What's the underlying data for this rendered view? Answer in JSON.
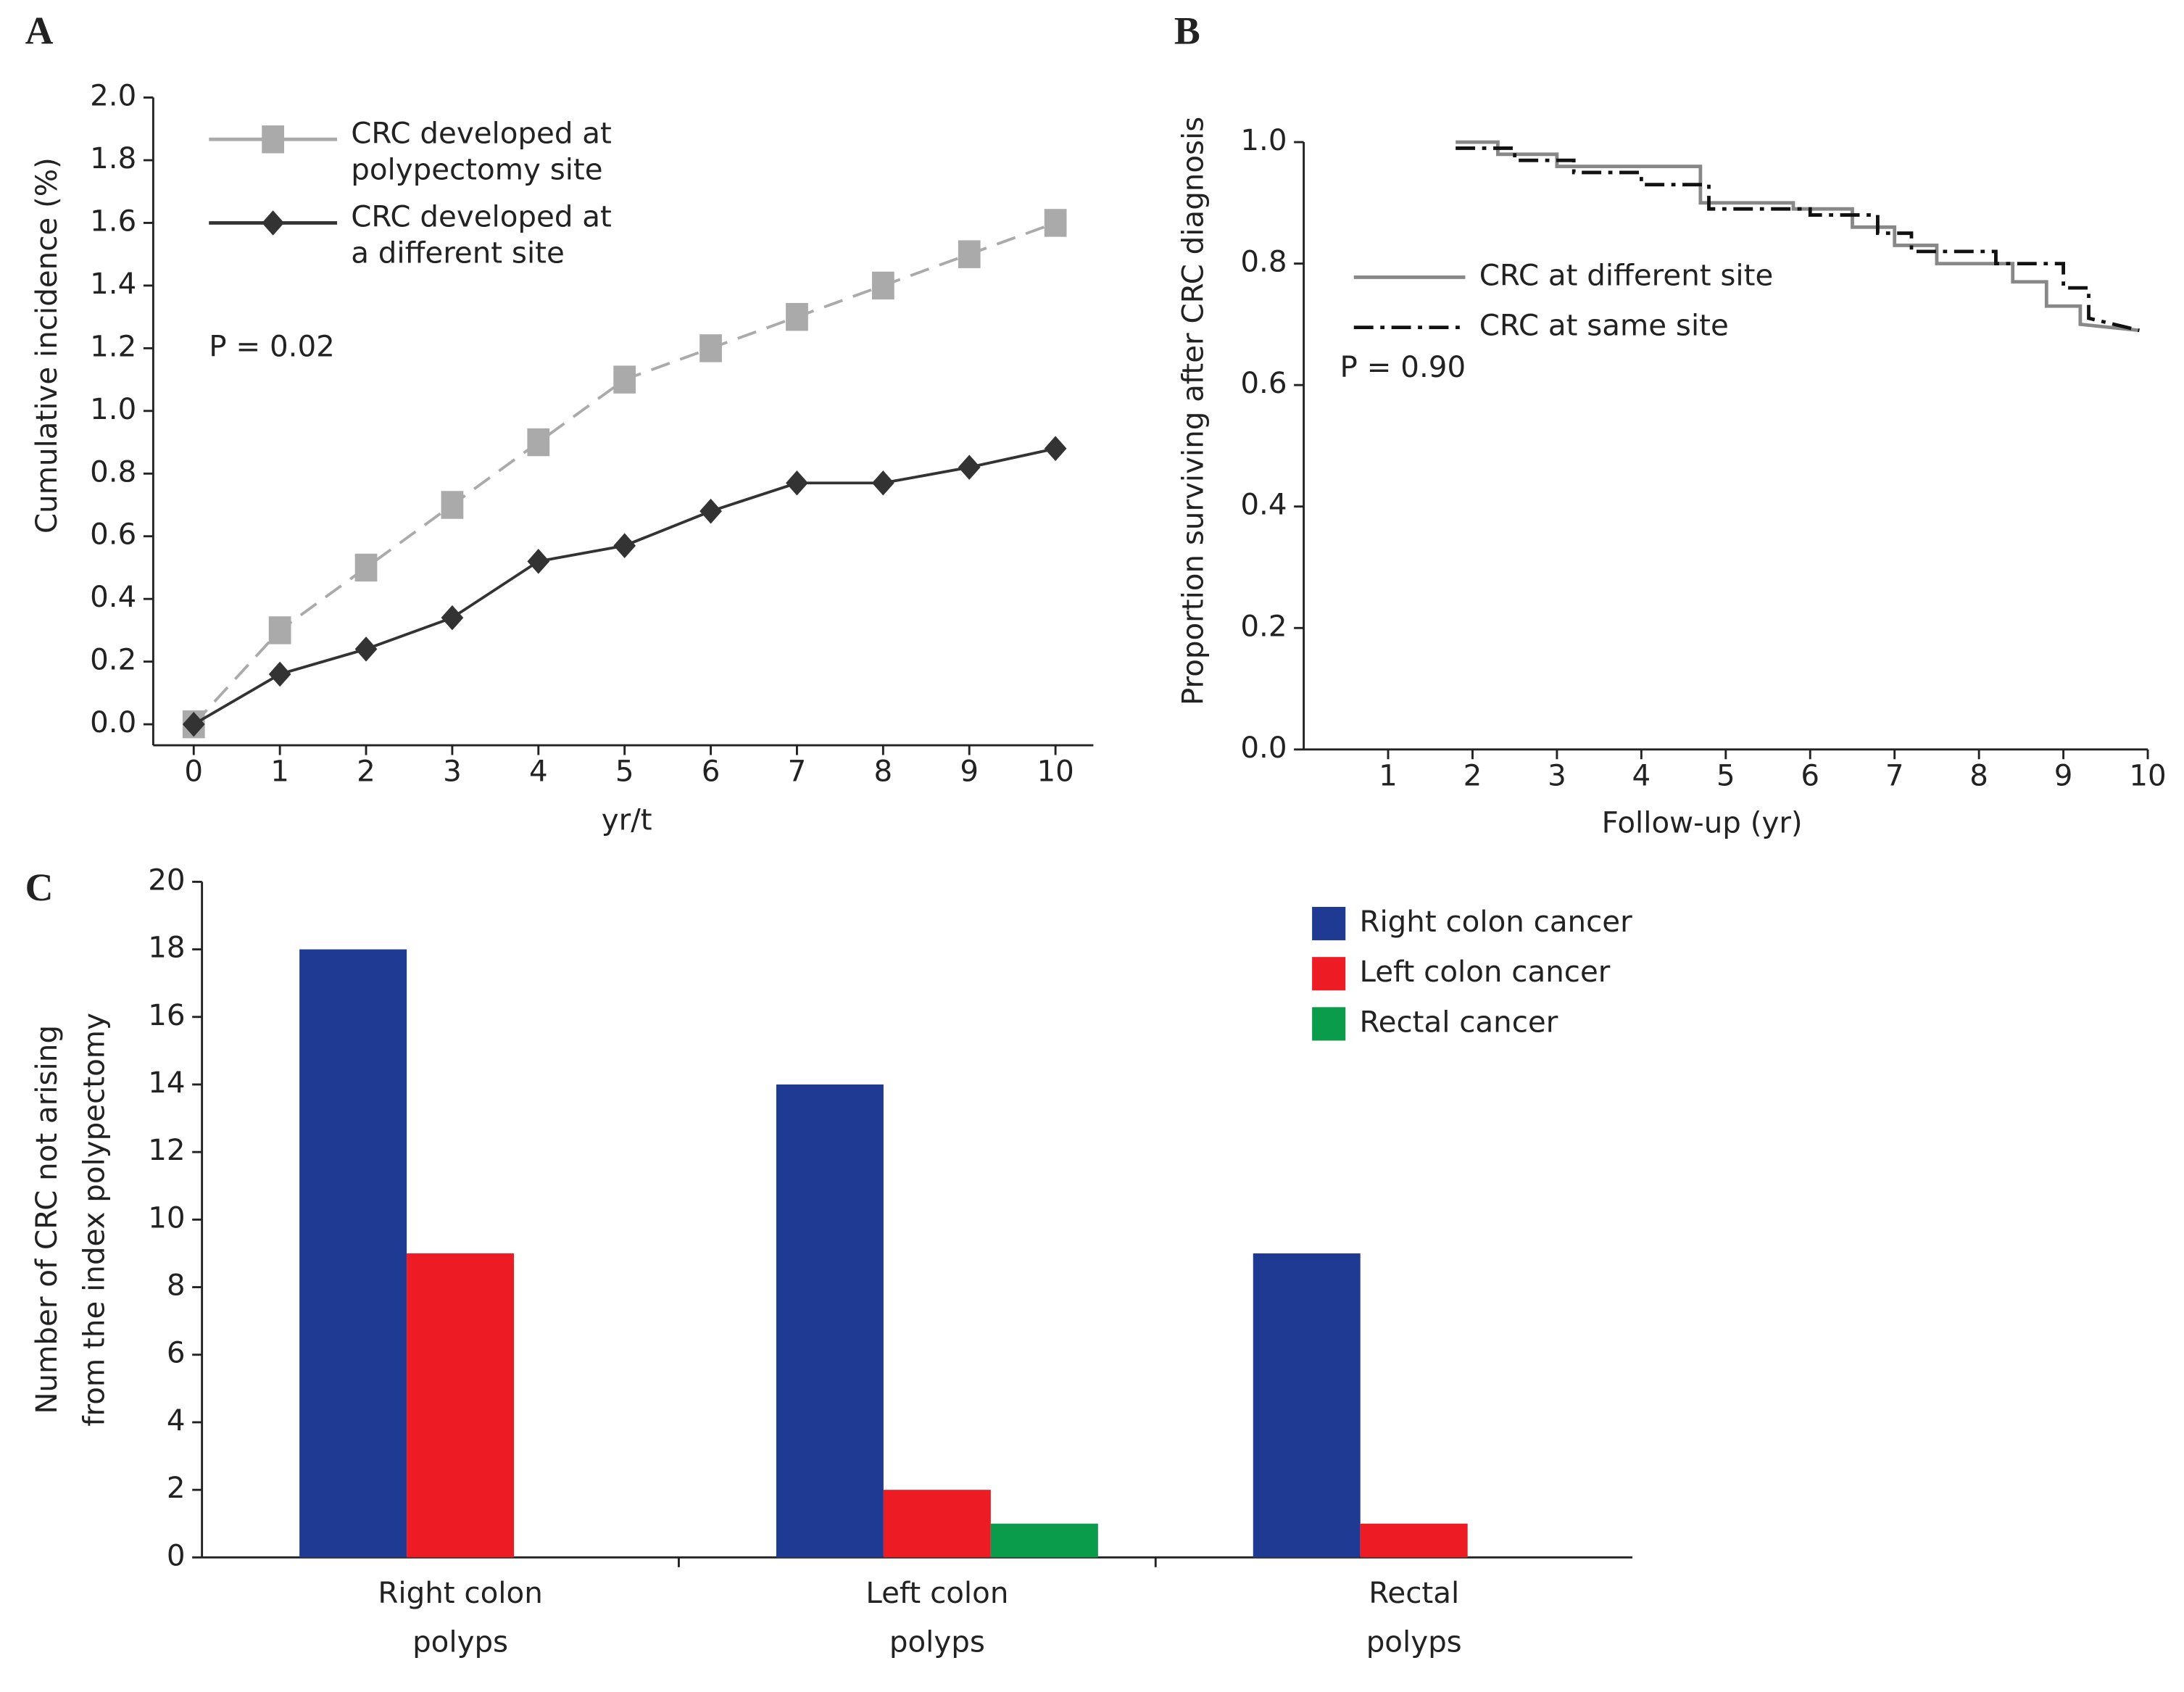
{
  "chart_data": [
    {
      "type": "line",
      "panel": "A",
      "ylabel": "Cumulative incidence (%)",
      "xlabel": "yr/t",
      "annotation": "P = 0.02",
      "x": [
        0,
        1,
        2,
        3,
        4,
        5,
        6,
        7,
        8,
        9,
        10
      ],
      "series": [
        {
          "name": "CRC developed at polypectomy site",
          "color": "#aaaaaa",
          "dash": "dash",
          "marker": "square",
          "values": [
            0,
            0.3,
            0.5,
            0.7,
            0.9,
            1.1,
            1.2,
            1.3,
            1.4,
            1.5,
            1.6
          ]
        },
        {
          "name": "CRC developed at a different site",
          "color": "#333333",
          "dash": "solid",
          "marker": "diamond",
          "values": [
            0,
            0.16,
            0.24,
            0.34,
            0.52,
            0.57,
            0.68,
            0.77,
            0.77,
            0.82,
            0.88
          ]
        }
      ],
      "xlim": [
        -0.47,
        10.44
      ],
      "ylim": [
        -0.067,
        2.0
      ],
      "xticks": [
        0,
        1,
        2,
        3,
        4,
        5,
        6,
        7,
        8,
        9,
        10
      ],
      "yticks": [
        {
          "value": 0,
          "label": "0.0"
        },
        0.2,
        0.4,
        0.6,
        0.8,
        {
          "value": 1,
          "label": "1.0"
        },
        1.2,
        1.4,
        1.6,
        1.8,
        {
          "value": 2,
          "label": "2.0"
        }
      ]
    },
    {
      "type": "step",
      "panel": "B",
      "ylabel": "Proportion surviving after CRC diagnosis",
      "xlabel": "Follow-up (yr)",
      "annotation": "P = 0.90",
      "series": [
        {
          "name": "CRC at different site",
          "color": "#888888",
          "dash": "solid",
          "x": [
            1.8,
            2.3,
            2.3,
            3.0,
            3.0,
            4.7,
            4.7,
            5.8,
            5.8,
            6.5,
            6.5,
            7.0,
            7.0,
            7.5,
            7.5,
            8.4,
            8.4,
            8.8,
            8.8,
            9.2,
            9.2,
            9.9
          ],
          "values": [
            1.0,
            1.0,
            0.98,
            0.98,
            0.96,
            0.96,
            0.9,
            0.9,
            0.89,
            0.89,
            0.86,
            0.86,
            0.83,
            0.83,
            0.8,
            0.8,
            0.77,
            0.77,
            0.73,
            0.73,
            0.7,
            0.69
          ]
        },
        {
          "name": "CRC at same site",
          "color": "#111111",
          "dash": "dashdot",
          "x": [
            1.8,
            2.5,
            2.5,
            3.2,
            3.2,
            4.0,
            4.0,
            4.8,
            4.8,
            6.0,
            6.0,
            6.8,
            6.8,
            7.2,
            7.2,
            8.2,
            8.2,
            9.0,
            9.0,
            9.3,
            9.3,
            9.9
          ],
          "values": [
            0.99,
            0.99,
            0.97,
            0.97,
            0.95,
            0.95,
            0.93,
            0.93,
            0.89,
            0.89,
            0.88,
            0.88,
            0.85,
            0.85,
            0.82,
            0.82,
            0.8,
            0.8,
            0.76,
            0.76,
            0.71,
            0.69
          ]
        }
      ],
      "xlim": [
        0,
        10
      ],
      "ylim": [
        0,
        1
      ],
      "xticks": [
        1,
        2,
        3,
        4,
        5,
        6,
        7,
        8,
        9,
        10
      ],
      "yticks": [
        {
          "value": 0,
          "label": "0.0"
        },
        0.2,
        0.4,
        0.6,
        0.8,
        {
          "value": 1,
          "label": "1.0"
        }
      ]
    },
    {
      "type": "bar",
      "panel": "C",
      "ylabel": [
        "Number of CRC not arising",
        "from the index polypectomy"
      ],
      "categories": [
        "Right colon polyps",
        "Left colon polyps",
        "Rectal polyps"
      ],
      "series": [
        {
          "name": "Right colon cancer",
          "color": "#1f3a93",
          "values": [
            18,
            14,
            9
          ]
        },
        {
          "name": "Left colon cancer",
          "color": "#ed1c24",
          "values": [
            9,
            2,
            1
          ]
        },
        {
          "name": "Rectal cancer",
          "color": "#0a9b4b",
          "values": [
            0,
            1,
            0
          ]
        }
      ],
      "ylim": [
        0,
        20
      ],
      "yticks": [
        0,
        2,
        4,
        6,
        8,
        10,
        12,
        14,
        16,
        18,
        20
      ]
    }
  ]
}
